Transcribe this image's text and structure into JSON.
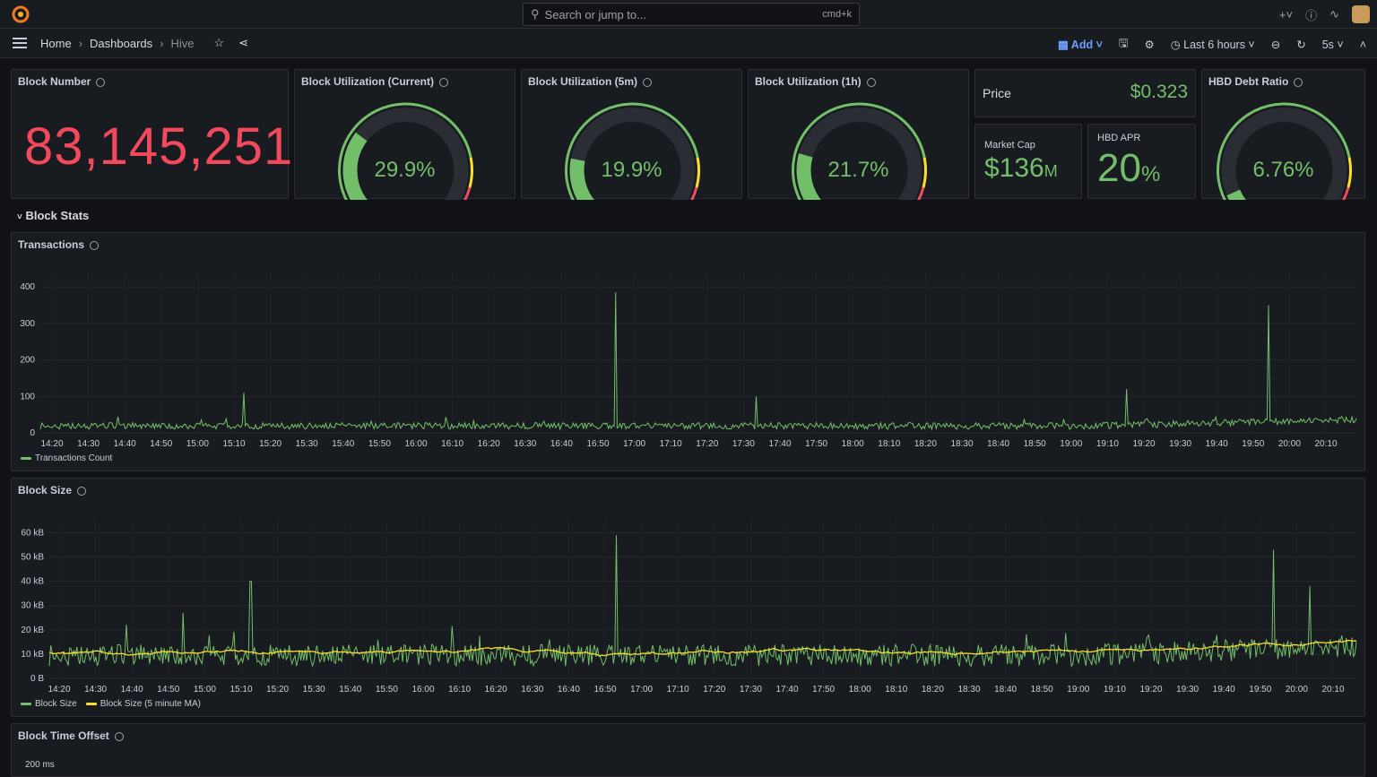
{
  "search": {
    "placeholder": "Search or jump to...",
    "shortcut": "cmd+k"
  },
  "breadcrumb": [
    "Home",
    "Dashboards",
    "Hive"
  ],
  "toolbar": {
    "add_label": "Add",
    "time_range": "Last 6 hours",
    "refresh": "5s"
  },
  "panels": {
    "block_number": {
      "title": "Block Number",
      "value": "83,145,251",
      "color": "#f2495c"
    },
    "util_current": {
      "title": "Block Utilization (Current)",
      "value": "29.9%",
      "level": 29.9
    },
    "util_5m": {
      "title": "Block Utilization (5m)",
      "value": "19.9%",
      "level": 19.9
    },
    "util_1h": {
      "title": "Block Utilization (1h)",
      "value": "21.7%",
      "level": 21.7
    },
    "price": {
      "title": "Price",
      "value": "$0.323"
    },
    "market_cap": {
      "title": "Market Cap",
      "value": "$136",
      "unit": "M"
    },
    "hbd_apr": {
      "title": "HBD APR",
      "value": "20",
      "unit": "%"
    },
    "hbd_debt": {
      "title": "HBD Debt Ratio",
      "value": "6.76%",
      "level": 6.76
    }
  },
  "section_title": "Block Stats",
  "chart_data": [
    {
      "type": "line",
      "title": "Transactions",
      "yticks": [
        "0",
        "100",
        "200",
        "300",
        "400"
      ],
      "ylim": [
        0,
        420
      ],
      "xticks": [
        "14:20",
        "14:30",
        "14:40",
        "14:50",
        "15:00",
        "15:10",
        "15:20",
        "15:30",
        "15:40",
        "15:50",
        "16:00",
        "16:10",
        "16:20",
        "16:30",
        "16:40",
        "16:50",
        "17:00",
        "17:10",
        "17:20",
        "17:30",
        "17:40",
        "17:50",
        "18:00",
        "18:10",
        "18:20",
        "18:30",
        "18:40",
        "18:50",
        "19:00",
        "19:10",
        "19:20",
        "19:30",
        "19:40",
        "19:50",
        "20:00",
        "20:10"
      ],
      "series": [
        {
          "name": "Transactions Count",
          "color": "#73bf69",
          "baseline": 20,
          "spikes": [
            [
              0.437,
              385
            ],
            [
              0.933,
              350
            ],
            [
              0.155,
              110
            ],
            [
              0.544,
              100
            ],
            [
              0.825,
              120
            ]
          ]
        }
      ]
    },
    {
      "type": "line",
      "title": "Block Size",
      "yticks": [
        "0 B",
        "10 kB",
        "20 kB",
        "30 kB",
        "40 kB",
        "50 kB",
        "60 kB"
      ],
      "ylim": [
        0,
        62
      ],
      "xticks": [
        "14:20",
        "14:30",
        "14:40",
        "14:50",
        "15:00",
        "15:10",
        "15:20",
        "15:30",
        "15:40",
        "15:50",
        "16:00",
        "16:10",
        "16:20",
        "16:30",
        "16:40",
        "16:50",
        "17:00",
        "17:10",
        "17:20",
        "17:30",
        "17:40",
        "17:50",
        "18:00",
        "18:10",
        "18:20",
        "18:30",
        "18:40",
        "18:50",
        "19:00",
        "19:10",
        "19:20",
        "19:30",
        "19:40",
        "19:50",
        "20:00",
        "20:10"
      ],
      "series": [
        {
          "name": "Block Size",
          "color": "#73bf69",
          "baseline": 10,
          "spikes": [
            [
              0.434,
              59
            ],
            [
              0.937,
              53
            ],
            [
              0.964,
              38
            ],
            [
              0.154,
              40
            ],
            [
              0.102,
              27
            ]
          ]
        },
        {
          "name": "Block Size (5 minute MA)",
          "color": "#fade2a",
          "baseline": 11
        }
      ]
    },
    {
      "type": "line",
      "title": "Block Time Offset",
      "yticks": [
        "200 ms"
      ]
    }
  ]
}
